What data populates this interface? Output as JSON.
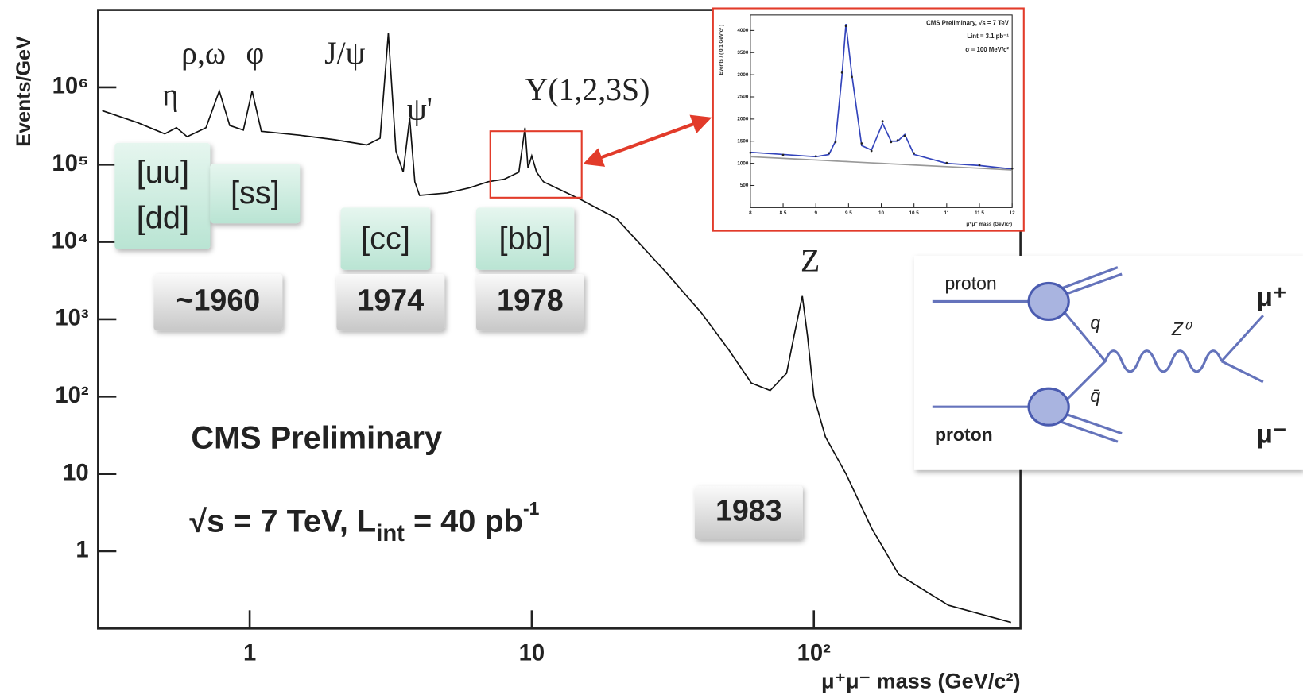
{
  "chart_data": [
    {
      "type": "line",
      "xlabel": "μ⁺μ⁻ mass (GeV/c²)",
      "ylabel": "Events/GeV",
      "xlog": true,
      "ylog": true,
      "xlim": [
        0.29,
        540
      ],
      "ylim": [
        0.1,
        10000000
      ],
      "xticks": [
        1,
        10,
        {
          "value": 100,
          "label": "10²"
        }
      ],
      "yticks": [
        1,
        10,
        {
          "value": 100,
          "label": "10²"
        },
        {
          "value": 1000,
          "label": "10³"
        },
        {
          "value": 10000,
          "label": "10⁴"
        },
        {
          "value": 100000,
          "label": "10⁵"
        },
        {
          "value": 1000000,
          "label": "10⁶"
        }
      ],
      "x": [
        0.3,
        0.4,
        0.5,
        0.55,
        0.6,
        0.7,
        0.78,
        0.85,
        0.95,
        1.02,
        1.1,
        1.5,
        2,
        2.6,
        2.9,
        3.1,
        3.3,
        3.5,
        3.69,
        3.85,
        4,
        5,
        6,
        7,
        8,
        9,
        9.46,
        9.7,
        10.0,
        10.4,
        11,
        15,
        20,
        30,
        40,
        50,
        60,
        70,
        80,
        85,
        91,
        95,
        100,
        110,
        130,
        160,
        200,
        300,
        500
      ],
      "series": [
        {
          "color": "#111111",
          "values": [
            500000,
            350000,
            250000,
            300000,
            230000,
            300000,
            900000,
            320000,
            280000,
            900000,
            270000,
            240000,
            210000,
            180000,
            220000,
            5000000,
            150000,
            80000,
            400000,
            60000,
            40000,
            43000,
            50000,
            60000,
            65000,
            80000,
            300000,
            90000,
            130000,
            80000,
            60000,
            35000,
            20000,
            4000,
            1200,
            400,
            150,
            120,
            200,
            600,
            2000,
            600,
            100,
            30,
            10,
            2,
            0.5,
            0.2,
            0.12
          ]
        }
      ],
      "peak_labels": [
        "η",
        "ρ,ω",
        "φ",
        "J/ψ",
        "ψ'",
        "Υ(1,2,3S)",
        "Z"
      ],
      "quark_labels": [
        "[uu]",
        "[dd]",
        "[ss]",
        "[cc]",
        "[bb]"
      ],
      "years": [
        "~1960",
        "1974",
        "1978",
        "1983"
      ],
      "note": "CMS Preliminary",
      "lumi": [
        "√s = 7 TeV,  L",
        "int",
        " = 40 pb",
        "-1"
      ]
    },
    {
      "type": "line",
      "xlabel": "μ⁺μ⁻ mass (GeV/c²)",
      "ylabel": "Events / ( 0.1 GeV/c² )",
      "xlim": [
        8,
        12
      ],
      "ylim": [
        0,
        4350
      ],
      "xticks": [
        8,
        8.5,
        9,
        9.5,
        10,
        10.5,
        11,
        11.5,
        12
      ],
      "yticks": [
        500,
        1000,
        1500,
        2000,
        2500,
        3000,
        3500,
        4000
      ],
      "annotations": [
        "CMS Preliminary, √s = 7 TeV",
        "Lint = 3.1 pb⁻¹",
        "σ = 100 MeV/c²"
      ],
      "x": [
        8,
        8.5,
        9,
        9.2,
        9.3,
        9.4,
        9.46,
        9.55,
        9.7,
        9.85,
        10.02,
        10.15,
        10.25,
        10.36,
        10.5,
        11,
        11.5,
        12
      ],
      "series": [
        {
          "color": "#3344bb",
          "values": [
            1250,
            1200,
            1150,
            1200,
            1500,
            3000,
            4150,
            3000,
            1400,
            1300,
            1900,
            1500,
            1500,
            1650,
            1200,
            1000,
            950,
            870
          ]
        },
        {
          "color": "#999999",
          "values": [
            1150,
            1112,
            1075,
            1060,
            1052,
            1045,
            1040,
            1034,
            1022,
            1011,
            999,
            989,
            981,
            973,
            962,
            925,
            888,
            850
          ]
        },
        {
          "color": "#222222",
          "mode": "markers",
          "values": [
            1240,
            1190,
            1160,
            1230,
            1480,
            3050,
            4100,
            2950,
            1450,
            1280,
            1950,
            1480,
            1520,
            1620,
            1230,
            1010,
            960,
            880
          ]
        }
      ]
    }
  ],
  "diagram": {
    "labels": [
      "proton",
      "proton",
      "q",
      "q̄",
      "Z⁰",
      "μ⁺",
      "μ⁻"
    ]
  }
}
